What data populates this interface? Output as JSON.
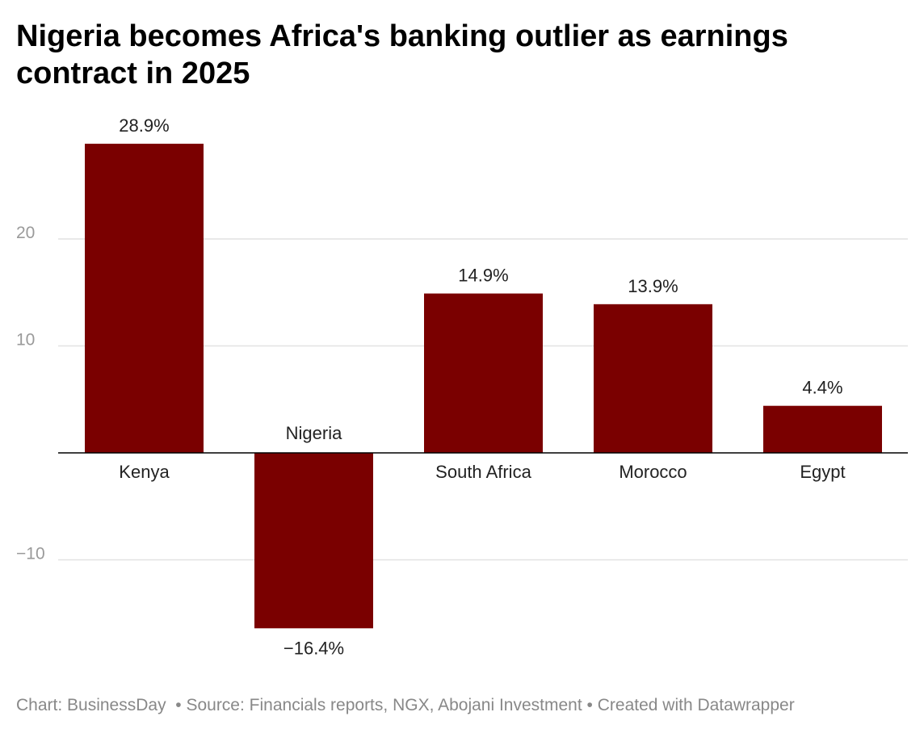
{
  "title": "Nigeria becomes Africa's banking outlier as earnings contract in 2025",
  "footer": {
    "chart_credit": "Chart: BusinessDay",
    "source": "Source: Financials reports, NGX, Abojani Investment",
    "created_with": "Created with Datawrapper",
    "separator": "•"
  },
  "colors": {
    "bar": "#7a0000",
    "grid": "#e2e2e2",
    "axis": "#000000",
    "tick_text": "#9a9a9a",
    "label_text": "#222222",
    "footer_text": "#888888"
  },
  "chart_data": {
    "type": "bar",
    "title": "Nigeria becomes Africa's banking outlier as earnings contract in 2025",
    "categories": [
      "Kenya",
      "Nigeria",
      "South Africa",
      "Morocco",
      "Egypt"
    ],
    "values": [
      28.9,
      -16.4,
      14.9,
      13.9,
      4.4
    ],
    "value_labels": [
      "28.9%",
      "−16.4%",
      "14.9%",
      "13.9%",
      "4.4%"
    ],
    "ylim": [
      -16.4,
      28.9
    ],
    "yticks": [
      -10,
      10,
      20
    ],
    "ytick_labels": [
      "−10",
      "10",
      "20"
    ],
    "xlabel": "",
    "ylabel": "",
    "grid": true,
    "legend": "none"
  }
}
